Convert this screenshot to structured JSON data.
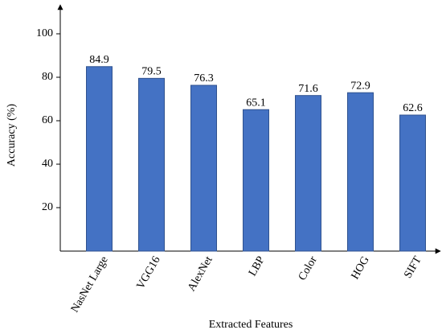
{
  "chart_data": {
    "type": "bar",
    "x_label": "Extracted Features",
    "y_label": "Accuracy (%)",
    "categories": [
      "NasNet Large",
      "VGG16",
      "AlexNet",
      "LBP",
      "Color",
      "HOG",
      "SIFT"
    ],
    "values": [
      84.9,
      79.5,
      76.3,
      65.1,
      71.6,
      72.9,
      62.6
    ],
    "color": "#4472c4",
    "ylim": [
      0,
      112
    ],
    "yticks": [
      20,
      40,
      60,
      80,
      100
    ]
  }
}
